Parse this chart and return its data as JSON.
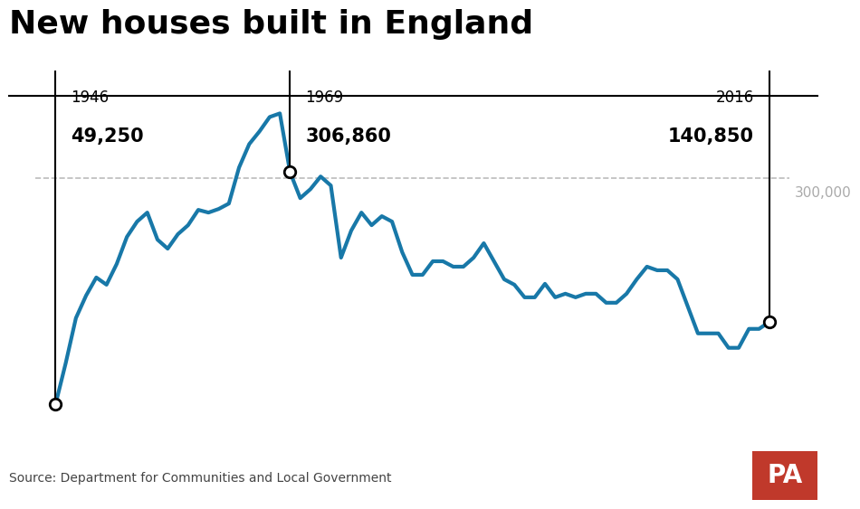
{
  "title": "New houses built in England",
  "source_text": "Source: Department for Communities and Local Government",
  "reference_line": 300000,
  "reference_label": "300,000",
  "annotations": [
    {
      "year": 1946,
      "value": 49250,
      "label_year": "1946",
      "label_value": "49,250",
      "label_side": "right"
    },
    {
      "year": 1969,
      "value": 306860,
      "label_year": "1969",
      "label_value": "306,860",
      "label_side": "right"
    },
    {
      "year": 2016,
      "value": 140850,
      "label_year": "2016",
      "label_value": "140,850",
      "label_side": "left"
    }
  ],
  "line_color": "#1878a8",
  "line_width": 3.0,
  "background_color": "#ffffff",
  "years": [
    1946,
    1947,
    1948,
    1949,
    1950,
    1951,
    1952,
    1953,
    1954,
    1955,
    1956,
    1957,
    1958,
    1959,
    1960,
    1961,
    1962,
    1963,
    1964,
    1965,
    1966,
    1967,
    1968,
    1969,
    1970,
    1971,
    1972,
    1973,
    1974,
    1975,
    1976,
    1977,
    1978,
    1979,
    1980,
    1981,
    1982,
    1983,
    1984,
    1985,
    1986,
    1987,
    1988,
    1989,
    1990,
    1991,
    1992,
    1993,
    1994,
    1995,
    1996,
    1997,
    1998,
    1999,
    2000,
    2001,
    2002,
    2003,
    2004,
    2005,
    2006,
    2007,
    2008,
    2009,
    2010,
    2011,
    2012,
    2013,
    2014,
    2015,
    2016
  ],
  "values": [
    49250,
    95000,
    145000,
    170000,
    190000,
    182000,
    205000,
    235000,
    252000,
    262000,
    232000,
    222000,
    238000,
    248000,
    265000,
    262000,
    266000,
    272000,
    312000,
    338000,
    352000,
    368000,
    372000,
    306860,
    278000,
    288000,
    302000,
    292000,
    212000,
    242000,
    262000,
    248000,
    258000,
    252000,
    218000,
    193000,
    193000,
    208000,
    208000,
    202000,
    202000,
    212000,
    228000,
    208000,
    188000,
    182000,
    168000,
    168000,
    183000,
    168000,
    172000,
    168000,
    172000,
    172000,
    162000,
    162000,
    172000,
    188000,
    202000,
    198000,
    198000,
    188000,
    158000,
    128000,
    128000,
    128000,
    112000,
    112000,
    133000,
    133000,
    140850
  ],
  "ylim": [
    0,
    420000
  ],
  "xlim_min": 1944,
  "xlim_max": 2019,
  "title_fontsize": 26,
  "annotation_year_fontsize": 12,
  "annotation_value_fontsize": 15,
  "ref_label_fontsize": 11,
  "source_fontsize": 10,
  "marker_size": 9
}
